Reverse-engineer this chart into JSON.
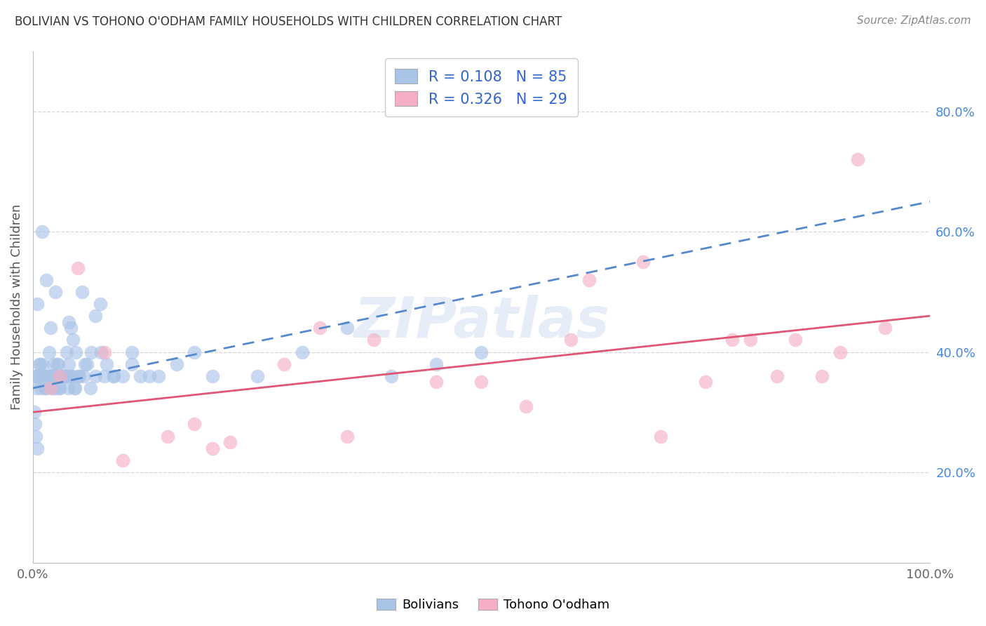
{
  "title": "BOLIVIAN VS TOHONO O'ODHAM FAMILY HOUSEHOLDS WITH CHILDREN CORRELATION CHART",
  "source": "Source: ZipAtlas.com",
  "ylabel_label": "Family Households with Children",
  "legend_label1": "Bolivians",
  "legend_label2": "Tohono O'odham",
  "R1": 0.108,
  "N1": 85,
  "R2": 0.326,
  "N2": 29,
  "blue_color": "#aac4e8",
  "pink_color": "#f4afc5",
  "trendline_blue": "#5588cc",
  "trendline_pink": "#e05575",
  "background": "#ffffff",
  "grid_color": "#cccccc",
  "yticks": [
    20,
    40,
    60,
    80
  ],
  "ylim": [
    5,
    90
  ],
  "xlim": [
    0,
    100
  ],
  "blue_x": [
    1.0,
    2.5,
    4.0,
    5.5,
    7.0,
    9.0,
    11.0,
    13.0,
    0.5,
    1.5,
    2.0,
    2.8,
    3.2,
    3.8,
    4.5,
    5.0,
    5.8,
    6.5,
    7.5,
    8.0,
    0.3,
    0.7,
    1.2,
    1.8,
    2.3,
    2.6,
    3.0,
    3.5,
    4.2,
    4.8,
    0.4,
    0.8,
    1.0,
    1.3,
    1.6,
    2.1,
    2.4,
    2.7,
    3.1,
    3.4,
    3.7,
    4.0,
    4.3,
    4.6,
    0.2,
    0.6,
    0.9,
    1.1,
    1.4,
    1.7,
    1.9,
    2.2,
    2.5,
    2.9,
    3.3,
    3.6,
    3.9,
    4.1,
    4.4,
    4.7,
    5.2,
    5.6,
    6.0,
    6.4,
    7.0,
    7.6,
    8.2,
    9.0,
    10.0,
    11.0,
    12.0,
    14.0,
    16.0,
    18.0,
    20.0,
    25.0,
    30.0,
    35.0,
    40.0,
    45.0,
    50.0,
    0.15,
    0.25,
    0.35,
    0.45
  ],
  "blue_y": [
    60.0,
    50.0,
    45.0,
    50.0,
    46.0,
    36.0,
    40.0,
    36.0,
    48.0,
    52.0,
    44.0,
    38.0,
    36.0,
    40.0,
    42.0,
    36.0,
    38.0,
    40.0,
    48.0,
    36.0,
    36.0,
    38.0,
    36.0,
    40.0,
    38.0,
    36.0,
    34.0,
    36.0,
    44.0,
    40.0,
    34.0,
    38.0,
    36.0,
    34.0,
    36.0,
    36.0,
    34.0,
    38.0,
    36.0,
    36.0,
    36.0,
    38.0,
    36.0,
    34.0,
    36.0,
    36.0,
    34.0,
    38.0,
    34.0,
    36.0,
    36.0,
    34.0,
    36.0,
    34.0,
    36.0,
    36.0,
    34.0,
    36.0,
    36.0,
    34.0,
    36.0,
    36.0,
    38.0,
    34.0,
    36.0,
    40.0,
    38.0,
    36.0,
    36.0,
    38.0,
    36.0,
    36.0,
    38.0,
    40.0,
    36.0,
    36.0,
    40.0,
    44.0,
    36.0,
    38.0,
    40.0,
    30.0,
    28.0,
    26.0,
    24.0
  ],
  "pink_x": [
    2.0,
    8.0,
    22.0,
    28.0,
    35.0,
    45.0,
    55.0,
    62.0,
    70.0,
    78.0,
    85.0,
    92.0,
    5.0,
    15.0,
    20.0,
    32.0,
    50.0,
    68.0,
    80.0,
    88.0,
    95.0,
    3.0,
    10.0,
    18.0,
    38.0,
    60.0,
    75.0,
    83.0,
    90.0
  ],
  "pink_y": [
    34.0,
    40.0,
    25.0,
    38.0,
    26.0,
    35.0,
    31.0,
    52.0,
    26.0,
    42.0,
    42.0,
    72.0,
    54.0,
    26.0,
    24.0,
    44.0,
    35.0,
    55.0,
    42.0,
    36.0,
    44.0,
    36.0,
    22.0,
    28.0,
    42.0,
    42.0,
    35.0,
    36.0,
    40.0
  ],
  "blue_trend_x": [
    0,
    100
  ],
  "blue_trend_y": [
    34.0,
    65.0
  ],
  "pink_trend_x": [
    0,
    100
  ],
  "pink_trend_y": [
    30.0,
    46.0
  ]
}
